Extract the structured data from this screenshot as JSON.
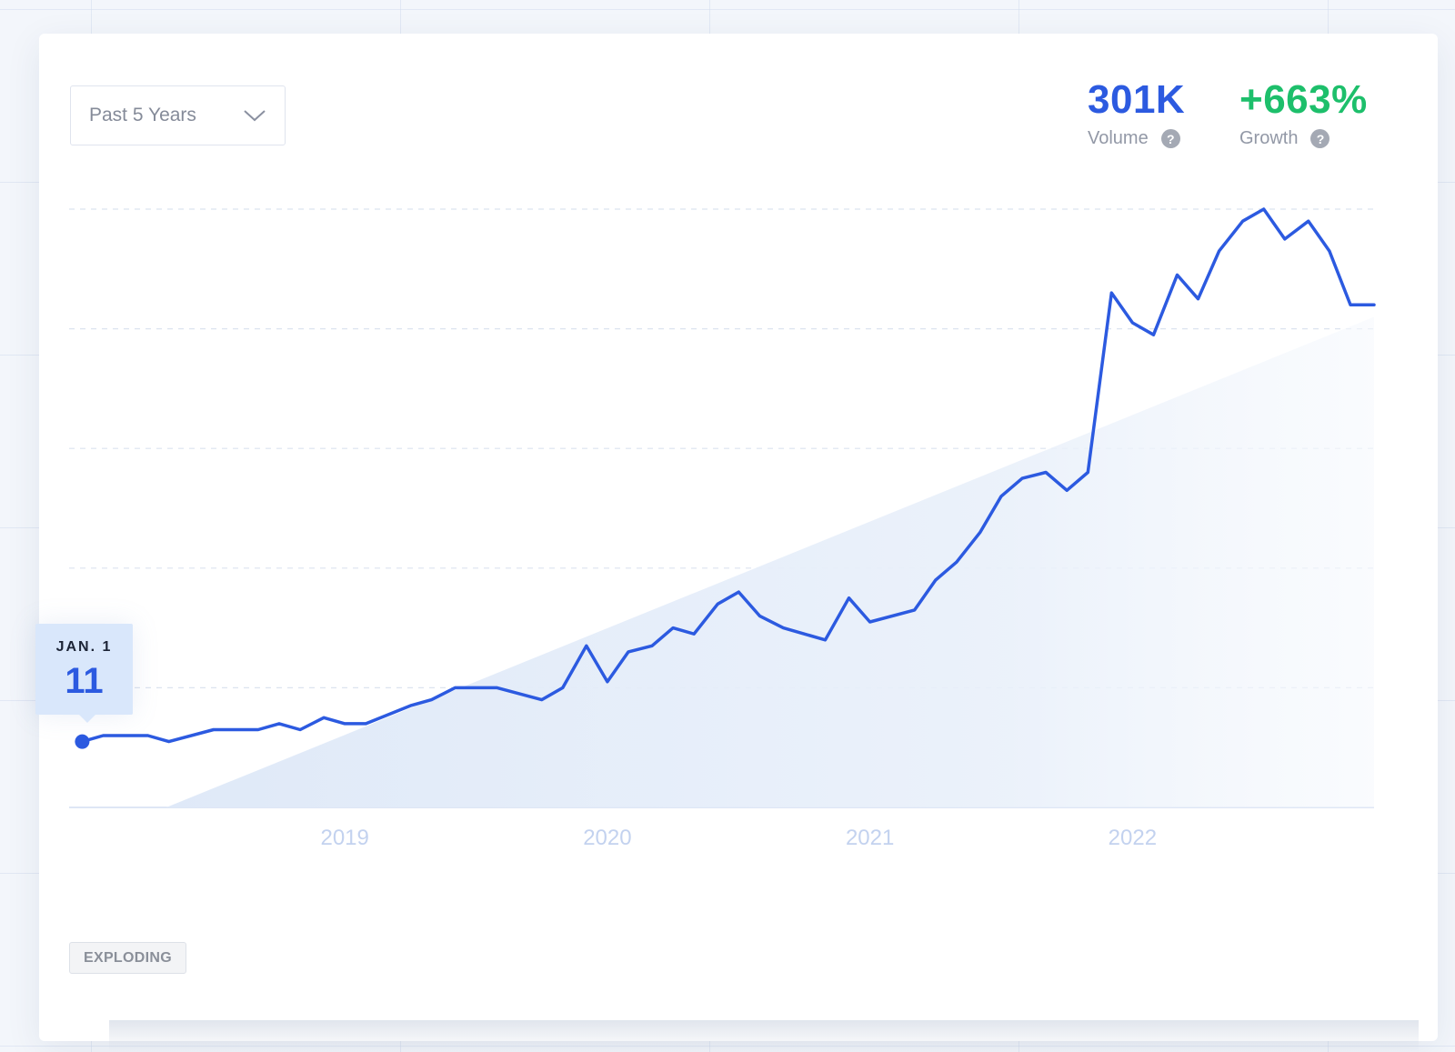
{
  "controls": {
    "range_label": "Past 5 Years"
  },
  "stats": {
    "volume_value": "301K",
    "volume_label": "Volume",
    "growth_value": "+663%",
    "growth_label": "Growth",
    "help_glyph": "?"
  },
  "tooltip": {
    "date": "JAN. 1",
    "value": "11"
  },
  "badge": {
    "label": "EXPLODING"
  },
  "colors": {
    "line": "#2c5ae0",
    "volume": "#2c5ae0",
    "growth": "#1dbf6b",
    "trend_fill": "#e3edfa",
    "grid": "#dce3ef",
    "tick": "#c3d2ef"
  },
  "icons": {
    "dropdown": "chevron-down-icon",
    "help": "question-circle-icon"
  },
  "chart_data": {
    "type": "line",
    "title": "",
    "xlabel": "",
    "ylabel": "",
    "x_ticks": [
      "2019",
      "2020",
      "2021",
      "2022"
    ],
    "x_tick_positions": [
      2019.0,
      2020.0,
      2021.0,
      2022.0
    ],
    "xlim": [
      2017.95,
      2022.92
    ],
    "ylim": [
      0,
      100
    ],
    "y_gridlines": [
      20,
      40,
      60,
      80,
      100
    ],
    "grid": true,
    "legend": "none",
    "trend_band": {
      "x": [
        2018.32,
        2022.92
      ],
      "y_end": 82
    },
    "series": [
      {
        "x": [
          2018.0,
          2018.08,
          2018.25,
          2018.33,
          2018.5,
          2018.67,
          2018.75,
          2018.83,
          2018.92,
          2019.0,
          2019.08,
          2019.25,
          2019.33,
          2019.42,
          2019.5,
          2019.58,
          2019.75,
          2019.83,
          2019.92,
          2020.0,
          2020.08,
          2020.17,
          2020.25,
          2020.33,
          2020.42,
          2020.5,
          2020.58,
          2020.67,
          2020.83,
          2020.92,
          2021.0,
          2021.17,
          2021.25,
          2021.33,
          2021.42,
          2021.5,
          2021.58,
          2021.67,
          2021.75,
          2021.83,
          2021.92,
          2022.0,
          2022.08,
          2022.17,
          2022.25,
          2022.33,
          2022.42,
          2022.5,
          2022.58,
          2022.67,
          2022.75,
          2022.83,
          2022.92
        ],
        "y": [
          11,
          12,
          12,
          11,
          13,
          13,
          14,
          13,
          15,
          14,
          14,
          17,
          18,
          20,
          20,
          20,
          18,
          20,
          27,
          21,
          26,
          27,
          30,
          29,
          34,
          36,
          32,
          30,
          28,
          35,
          31,
          33,
          38,
          41,
          46,
          52,
          55,
          56,
          53,
          56,
          86,
          81,
          79,
          89,
          85,
          93,
          98,
          100,
          95,
          98,
          93,
          84,
          84
        ]
      }
    ]
  }
}
